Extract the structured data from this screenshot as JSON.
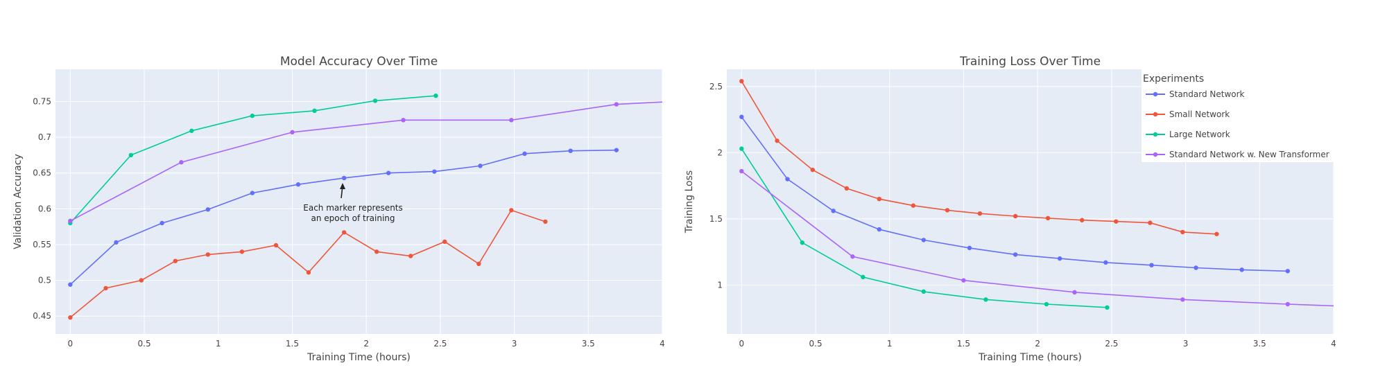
{
  "chart_data": [
    {
      "type": "line",
      "title": "Model Accuracy Over Time",
      "xlabel": "Training Time (hours)",
      "ylabel": "Validation Accuracy",
      "xlim": [
        -0.1,
        4
      ],
      "ylim": [
        0.425,
        0.795
      ],
      "xticks": [
        0,
        0.5,
        1,
        1.5,
        2,
        2.5,
        3,
        3.5,
        4
      ],
      "xtick_labels": [
        "0",
        "0.5",
        "1",
        "1.5",
        "2",
        "2.5",
        "3",
        "3.5",
        "4"
      ],
      "yticks": [
        0.45,
        0.5,
        0.55,
        0.6,
        0.65,
        0.7,
        0.75
      ],
      "ytick_labels": [
        "0.45",
        "0.5",
        "0.55",
        "0.6",
        "0.65",
        "0.7",
        "0.75"
      ],
      "grid": true,
      "annotation": {
        "lines": [
          "Each marker represents",
          "an epoch of training"
        ],
        "x": 1.84,
        "y": 0.642
      },
      "series": [
        {
          "name": "Standard Network",
          "color": "#636efa",
          "x": [
            0,
            0.31,
            0.62,
            0.93,
            1.23,
            1.54,
            1.85,
            2.15,
            2.46,
            2.77,
            3.07,
            3.38,
            3.69
          ],
          "y": [
            0.494,
            0.553,
            0.58,
            0.599,
            0.622,
            0.634,
            0.643,
            0.65,
            0.652,
            0.66,
            0.677,
            0.681,
            0.682
          ]
        },
        {
          "name": "Small Network",
          "color": "#ef553b",
          "x": [
            0,
            0.24,
            0.48,
            0.71,
            0.93,
            1.16,
            1.39,
            1.61,
            1.85,
            2.07,
            2.3,
            2.53,
            2.76,
            2.98,
            3.21
          ],
          "y": [
            0.448,
            0.489,
            0.5,
            0.527,
            0.536,
            0.54,
            0.549,
            0.511,
            0.567,
            0.54,
            0.534,
            0.554,
            0.523,
            0.598,
            0.582
          ]
        },
        {
          "name": "Large Network",
          "color": "#00cc96",
          "x": [
            0,
            0.41,
            0.82,
            1.23,
            1.65,
            2.06,
            2.47
          ],
          "y": [
            0.58,
            0.675,
            0.709,
            0.73,
            0.737,
            0.751,
            0.758
          ]
        },
        {
          "name": "Standard Network w. New Transformer",
          "color": "#ab63fa",
          "x": [
            0,
            0.75,
            1.5,
            2.25,
            2.98,
            3.69,
            4.44
          ],
          "y": [
            0.583,
            0.665,
            0.707,
            0.724,
            0.724,
            0.746,
            0.754
          ]
        }
      ]
    },
    {
      "type": "line",
      "title": "Training Loss Over Time",
      "xlabel": "Training Time (hours)",
      "ylabel": "Training Loss",
      "xlim": [
        -0.1,
        4
      ],
      "ylim": [
        0.63,
        2.63
      ],
      "xticks": [
        0,
        0.5,
        1,
        1.5,
        2,
        2.5,
        3,
        3.5,
        4
      ],
      "xtick_labels": [
        "0",
        "0.5",
        "1",
        "1.5",
        "2",
        "2.5",
        "3",
        "3.5",
        "4"
      ],
      "yticks": [
        1,
        1.5,
        2,
        2.5
      ],
      "ytick_labels": [
        "1",
        "1.5",
        "2",
        "2.5"
      ],
      "grid": true,
      "legend": {
        "title": "Experiments",
        "position": "top-right"
      },
      "series": [
        {
          "name": "Standard Network",
          "color": "#636efa",
          "x": [
            0,
            0.31,
            0.62,
            0.93,
            1.23,
            1.54,
            1.85,
            2.15,
            2.46,
            2.77,
            3.07,
            3.38,
            3.69
          ],
          "y": [
            2.27,
            1.8,
            1.56,
            1.42,
            1.34,
            1.28,
            1.23,
            1.2,
            1.17,
            1.15,
            1.13,
            1.115,
            1.105
          ]
        },
        {
          "name": "Small Network",
          "color": "#ef553b",
          "x": [
            0,
            0.24,
            0.48,
            0.71,
            0.93,
            1.16,
            1.39,
            1.61,
            1.85,
            2.07,
            2.3,
            2.53,
            2.76,
            2.98,
            3.21
          ],
          "y": [
            2.54,
            2.09,
            1.87,
            1.73,
            1.65,
            1.6,
            1.565,
            1.54,
            1.52,
            1.505,
            1.49,
            1.48,
            1.47,
            1.4,
            1.385
          ]
        },
        {
          "name": "Large Network",
          "color": "#00cc96",
          "x": [
            0,
            0.41,
            0.82,
            1.23,
            1.65,
            2.06,
            2.47
          ],
          "y": [
            2.03,
            1.32,
            1.06,
            0.95,
            0.89,
            0.855,
            0.83
          ]
        },
        {
          "name": "Standard Network w. New Transformer",
          "color": "#ab63fa",
          "x": [
            0,
            0.75,
            1.5,
            2.25,
            2.98,
            3.69,
            4.44
          ],
          "y": [
            1.86,
            1.215,
            1.035,
            0.945,
            0.89,
            0.855,
            0.825
          ]
        }
      ]
    }
  ]
}
